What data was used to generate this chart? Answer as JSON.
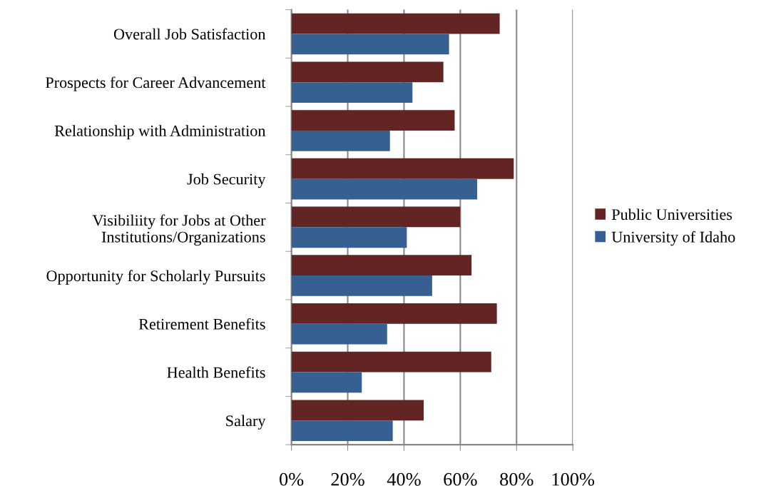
{
  "chart_data": {
    "type": "bar",
    "orientation": "horizontal",
    "categories": [
      "Overall Job Satisfaction",
      "Prospects for Career Advancement",
      "Relationship with Administration",
      "Job Security",
      "Visibiliity for Jobs at Other\nInstitutions/Organizations",
      "Opportunity for Scholarly Pursuits",
      "Retirement Benefits",
      "Health Benefits",
      "Salary"
    ],
    "series": [
      {
        "name": "Public Universities",
        "color": "#632523",
        "values": [
          74,
          54,
          58,
          79,
          60,
          64,
          73,
          71,
          47
        ]
      },
      {
        "name": "University of Idaho",
        "color": "#376092",
        "values": [
          56,
          43,
          35,
          66,
          41,
          50,
          34,
          25,
          36
        ]
      }
    ],
    "xlim": [
      0,
      100
    ],
    "xticks": [
      {
        "value": 0,
        "label": "0%"
      },
      {
        "value": 20,
        "label": "20%"
      },
      {
        "value": 40,
        "label": "40%"
      },
      {
        "value": 60,
        "label": "60%"
      },
      {
        "value": 80,
        "label": "80%"
      },
      {
        "value": 100,
        "label": "100%"
      }
    ],
    "grid": "x",
    "legend": "right"
  }
}
